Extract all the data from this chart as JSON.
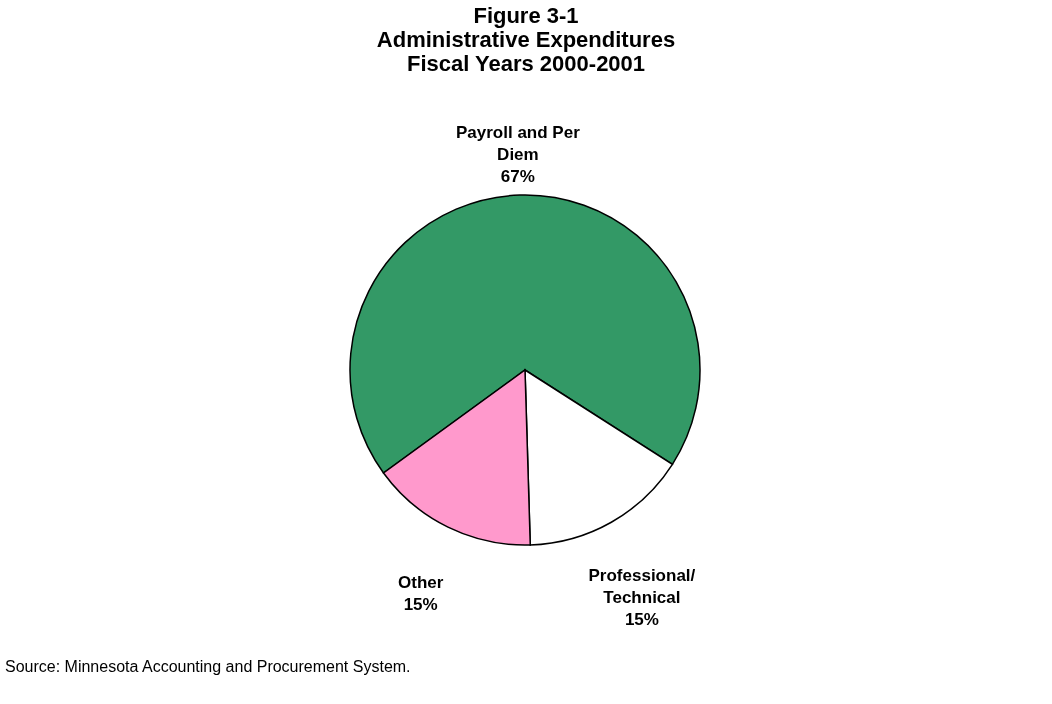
{
  "chart_data": {
    "type": "pie",
    "title": "Figure 3-1\nAdministrative Expenditures\nFiscal Years 2000-2001",
    "categories": [
      "Payroll and Per Diem",
      "Professional/ Technical",
      "Other"
    ],
    "values": [
      67,
      15,
      15
    ],
    "value_labels": [
      "67%",
      "15%",
      "15%"
    ],
    "colors": [
      "#339966",
      "#ffffff",
      "#ff99cc"
    ],
    "annotations": [
      "Source: Minnesota Accounting and Procurement System."
    ]
  }
}
